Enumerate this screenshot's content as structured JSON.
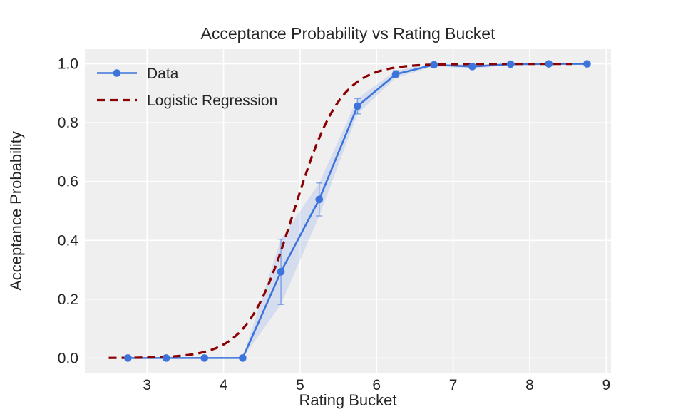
{
  "figure": {
    "background": "#ffffff",
    "plot_background": "#efeff0",
    "grid_color": "#ffffff"
  },
  "title": "Acceptance Probability vs Rating Bucket",
  "xlabel": "Rating Bucket",
  "ylabel": "Acceptance Probability",
  "legend": {
    "position": "upper left",
    "items": [
      {
        "label": "Data",
        "style": "solid-line-with-marker",
        "color": "#3d74dc"
      },
      {
        "label": "Logistic Regression",
        "style": "dashed-line",
        "color": "#8b0000"
      }
    ]
  },
  "colors": {
    "data_line": "#3d74dc",
    "regression_line": "#8b0000",
    "error_bar": "rgba(61,116,220,0.55)",
    "confidence_band": "rgba(61,116,220,0.15)"
  },
  "chart_data": {
    "type": "line",
    "title": "Acceptance Probability vs Rating Bucket",
    "xlabel": "Rating Bucket",
    "ylabel": "Acceptance Probability",
    "xlim": [
      2.1875,
      9.0625
    ],
    "ylim": [
      -0.05,
      1.05
    ],
    "xticks": [
      3,
      4,
      5,
      6,
      7,
      8,
      9
    ],
    "xtick_labels": [
      "3",
      "4",
      "5",
      "6",
      "7",
      "8",
      "9"
    ],
    "yticks": [
      0.0,
      0.2,
      0.4,
      0.6,
      0.8,
      1.0
    ],
    "ytick_labels": [
      "0.0",
      "0.2",
      "0.4",
      "0.6",
      "0.8",
      "1.0"
    ],
    "grid": true,
    "legend_position": "upper left",
    "series": [
      {
        "name": "Data",
        "type": "line+markers+errorbars",
        "color": "#3d74dc",
        "x": [
          2.75,
          3.25,
          3.75,
          4.25,
          4.75,
          5.25,
          5.75,
          6.25,
          6.75,
          7.25,
          7.75,
          8.25,
          8.75
        ],
        "y": [
          0.0,
          0.0,
          0.0,
          0.0,
          0.293,
          0.539,
          0.856,
          0.965,
          0.997,
          0.991,
          0.999,
          1.0,
          1.0
        ],
        "yerr": [
          0,
          0,
          0,
          0,
          0.111,
          0.056,
          0.026,
          0.012,
          0.005,
          0.007,
          0.003,
          0.002,
          0.002
        ]
      },
      {
        "name": "Logistic Regression",
        "type": "dashed-curve",
        "color": "#8b0000",
        "model": "logistic",
        "x0": 4.92,
        "k": 3.3,
        "x_range": [
          2.5,
          8.55
        ]
      }
    ],
    "confidence_band": {
      "applies_to": "Data",
      "x_start": 4.25,
      "x_end": 8.75,
      "bounds": "y minus yerr to y plus yerr",
      "color": "rgba(61,116,220,0.15)"
    }
  }
}
